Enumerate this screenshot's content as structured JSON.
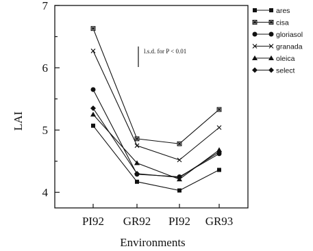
{
  "chart_data": {
    "type": "line",
    "xlabel": "Environments",
    "ylabel": "LAI",
    "categories": [
      "PI92",
      "GR92",
      "PI92",
      "GR93"
    ],
    "ylim": [
      3.75,
      7
    ],
    "yticks": [
      4,
      5,
      6,
      7
    ],
    "grid": false,
    "legend": "right",
    "annotation": "l.s.d. for P < 0.01",
    "series": [
      {
        "name": "ares",
        "marker": "square-filled",
        "values": [
          5.07,
          4.17,
          4.03,
          4.36
        ]
      },
      {
        "name": "cisa",
        "marker": "square-asterisk",
        "values": [
          6.63,
          4.86,
          4.78,
          5.33
        ]
      },
      {
        "name": "gloriasol",
        "marker": "circle-filled",
        "values": [
          5.65,
          4.29,
          4.25,
          4.62
        ]
      },
      {
        "name": "granada",
        "marker": "x-cross",
        "values": [
          6.27,
          4.75,
          4.52,
          5.04
        ]
      },
      {
        "name": "oleica",
        "marker": "triangle-filled",
        "values": [
          5.25,
          4.47,
          4.21,
          4.68
        ]
      },
      {
        "name": "select",
        "marker": "diamond-filled",
        "values": [
          5.35,
          4.3,
          4.24,
          4.65
        ]
      }
    ]
  }
}
